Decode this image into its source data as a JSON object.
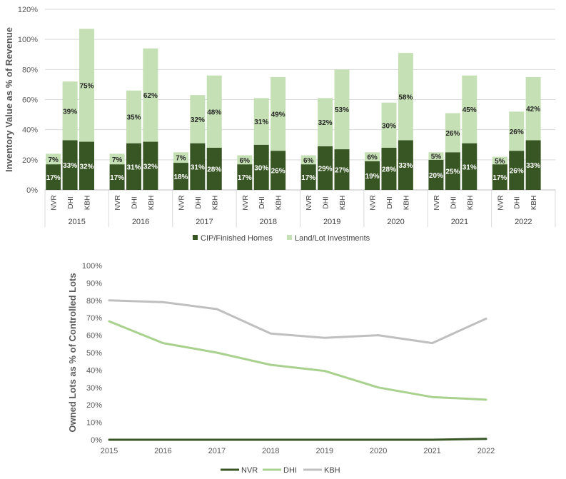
{
  "chart_data": [
    {
      "type": "bar",
      "stacked": true,
      "ylabel": "Inventory Value as % of Revenue",
      "ylim": [
        0,
        120
      ],
      "yticks": [
        "0%",
        "20%",
        "40%",
        "60%",
        "80%",
        "100%",
        "120%"
      ],
      "grid": true,
      "groups": [
        "2015",
        "2016",
        "2017",
        "2018",
        "2019",
        "2020",
        "2021",
        "2022"
      ],
      "companies": [
        "NVR",
        "DHI",
        "KBH"
      ],
      "series": [
        {
          "name": "CIP/Finished Homes",
          "color": "#375623",
          "label_color": "#ffffff",
          "values": [
            [
              17,
              33,
              32
            ],
            [
              17,
              31,
              32
            ],
            [
              18,
              31,
              28
            ],
            [
              17,
              30,
              26
            ],
            [
              17,
              29,
              27
            ],
            [
              19,
              28,
              33
            ],
            [
              20,
              25,
              31
            ],
            [
              17,
              26,
              33
            ]
          ],
          "labels": [
            [
              "17%",
              "33%",
              "32%"
            ],
            [
              "17%",
              "31%",
              "32%"
            ],
            [
              "18%",
              "31%",
              "28%"
            ],
            [
              "17%",
              "30%",
              "26%"
            ],
            [
              "17%",
              "29%",
              "27%"
            ],
            [
              "19%",
              "28%",
              "33%"
            ],
            [
              "20%",
              "25%",
              "31%"
            ],
            [
              "17%",
              "26%",
              "33%"
            ]
          ]
        },
        {
          "name": "Land/Lot Investments",
          "color": "#c5e0b4",
          "label_color": "#262626",
          "values": [
            [
              7,
              39,
              75
            ],
            [
              7,
              35,
              62
            ],
            [
              7,
              32,
              48
            ],
            [
              6,
              31,
              49
            ],
            [
              6,
              32,
              53
            ],
            [
              6,
              30,
              58
            ],
            [
              5,
              26,
              45
            ],
            [
              5,
              26,
              42
            ]
          ],
          "labels": [
            [
              "7%",
              "39%",
              "75%"
            ],
            [
              "7%",
              "35%",
              "62%"
            ],
            [
              "7%",
              "32%",
              "48%"
            ],
            [
              "6%",
              "31%",
              "49%"
            ],
            [
              "6%",
              "32%",
              "53%"
            ],
            [
              "6%",
              "30%",
              "58%"
            ],
            [
              "5%",
              "26%",
              "45%"
            ],
            [
              "5%",
              "26%",
              "42%"
            ]
          ]
        }
      ],
      "legend": [
        "CIP/Finished Homes",
        "Land/Lot Investments"
      ],
      "legend_position": "bottom"
    },
    {
      "type": "line",
      "ylabel": "Owned Lots as % of Controlled Lots",
      "ylim": [
        0,
        100
      ],
      "yticks": [
        "0%",
        "10%",
        "20%",
        "30%",
        "40%",
        "50%",
        "60%",
        "70%",
        "80%",
        "90%",
        "100%"
      ],
      "x": [
        "2015",
        "2016",
        "2017",
        "2018",
        "2019",
        "2020",
        "2021",
        "2022"
      ],
      "grid": false,
      "series": [
        {
          "name": "NVR",
          "color": "#375623",
          "values": [
            0,
            0,
            0,
            0,
            0,
            0,
            0,
            0.5
          ]
        },
        {
          "name": "DHI",
          "color": "#a9d18e",
          "values": [
            68,
            55.5,
            50,
            43,
            39.5,
            30,
            24.5,
            23
          ]
        },
        {
          "name": "KBH",
          "color": "#bfbfbf",
          "values": [
            80,
            79,
            75,
            61,
            58.5,
            60,
            55.5,
            69.5
          ]
        }
      ],
      "legend": [
        "NVR",
        "DHI",
        "KBH"
      ],
      "legend_position": "bottom"
    }
  ]
}
